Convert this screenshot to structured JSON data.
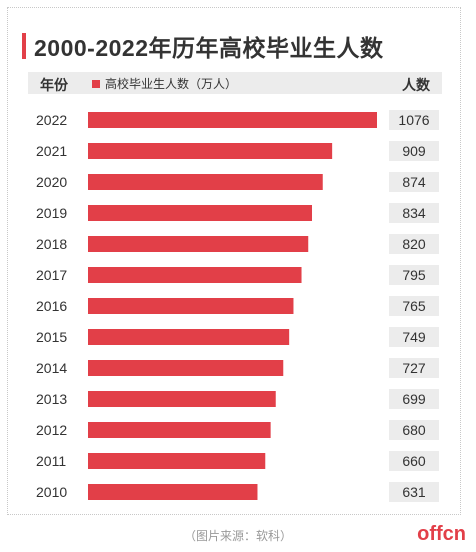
{
  "title": "2000-2022年历年高校毕业生人数",
  "header": {
    "year_label": "年份",
    "legend_label": "高校毕业生人数（万人）",
    "count_label": "人数"
  },
  "caption": "（图片来源：软科）",
  "watermark": "offcn",
  "colors": {
    "bar": "#e23f48",
    "value_bg": "#ececec"
  },
  "chart_data": {
    "type": "bar",
    "orientation": "horizontal",
    "categories": [
      "2022",
      "2021",
      "2020",
      "2019",
      "2018",
      "2017",
      "2016",
      "2015",
      "2014",
      "2013",
      "2012",
      "2011",
      "2010"
    ],
    "series": [
      {
        "name": "高校毕业生人数（万人）",
        "values": [
          1076,
          909,
          874,
          834,
          820,
          795,
          765,
          749,
          727,
          699,
          680,
          660,
          631
        ]
      }
    ],
    "title": "2000-2022年历年高校毕业生人数",
    "xlabel": "",
    "ylabel": "",
    "grid": false
  }
}
